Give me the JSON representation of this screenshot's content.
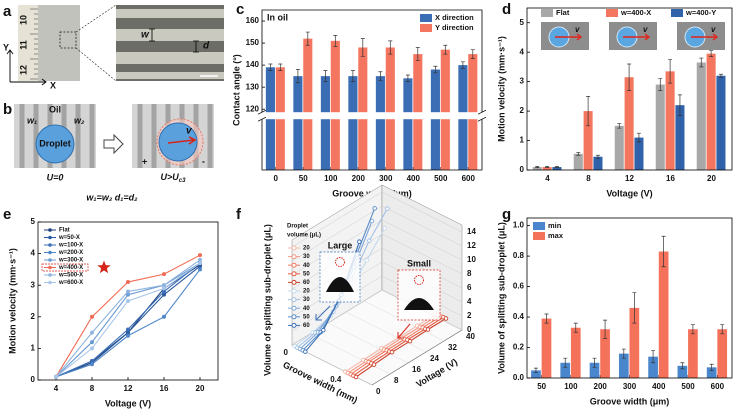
{
  "panel_a": {
    "label": "a",
    "ruler": [
      "10",
      "11",
      "12"
    ],
    "y_axis": "Y",
    "x_axis": "X",
    "w": "w",
    "d": "d"
  },
  "panel_b": {
    "label": "b",
    "medium": "Oil",
    "w1": "w₁",
    "w2": "w₂",
    "droplet": "Droplet",
    "state_left": "U=0",
    "state_right": "U>U",
    "state_right_sub": "c3",
    "plus": "+",
    "minus": "-",
    "velocity": "v",
    "condition": "w₁=w₂  d₁=d₂"
  },
  "chart_data": [
    {
      "type": "bar",
      "label": "c",
      "annotation": "In oil",
      "categories": [
        "0",
        "50",
        "100",
        "200",
        "300",
        "400",
        "500",
        "600"
      ],
      "series": [
        {
          "name": "X direction",
          "color": "#3a6db3",
          "values": [
            139,
            135,
            135,
            135,
            135,
            134,
            138,
            140
          ],
          "errors": [
            1.5,
            3,
            2.5,
            2.5,
            2,
            1.5,
            1.5,
            1.5
          ]
        },
        {
          "name": "Y direction",
          "color": "#f47560",
          "values": [
            139,
            152,
            151,
            148,
            148,
            145,
            147,
            145
          ],
          "errors": [
            1.5,
            3,
            2.5,
            4,
            3,
            3,
            2,
            2
          ]
        }
      ],
      "xlabel": "Groove width (μm)",
      "ylabel": "Contact angle (°)",
      "ylim": [
        120,
        165
      ],
      "yticks": [
        120,
        130,
        140,
        150,
        160
      ],
      "axis_break": true,
      "legend": "upper right"
    },
    {
      "type": "bar",
      "label": "d",
      "categories": [
        "4",
        "8",
        "12",
        "16",
        "20"
      ],
      "series": [
        {
          "name": "Flat",
          "color": "#a8a8a8",
          "values": [
            0.1,
            0.55,
            1.5,
            2.9,
            3.65
          ],
          "errors": [
            0.02,
            0.05,
            0.08,
            0.2,
            0.15
          ]
        },
        {
          "name": "w=400-X",
          "color": "#f4765f",
          "values": [
            0.1,
            2.0,
            3.15,
            3.35,
            3.95
          ],
          "errors": [
            0.02,
            0.5,
            0.45,
            0.4,
            0.1
          ]
        },
        {
          "name": "w=400-Y",
          "color": "#2f62a8",
          "values": [
            0.1,
            0.45,
            1.1,
            2.2,
            3.2
          ],
          "errors": [
            0.02,
            0.05,
            0.15,
            0.35,
            0.05
          ]
        }
      ],
      "inset_labels": [
        "v",
        "v",
        "v"
      ],
      "xlabel": "Voltage (V)",
      "ylabel": "Motion velocity (mm·s⁻¹)",
      "ylim": [
        0,
        5.5
      ],
      "yticks": [
        0,
        1,
        2,
        3,
        4,
        5
      ],
      "legend": "top"
    },
    {
      "type": "line",
      "label": "e",
      "x": [
        4,
        8,
        12,
        16,
        20
      ],
      "xlim": [
        2,
        22
      ],
      "xticks": [
        4,
        8,
        12,
        16,
        20
      ],
      "series": [
        {
          "name": "Flat",
          "color": "#1f3f7a",
          "values": [
            0.1,
            0.55,
            1.5,
            2.9,
            3.65
          ]
        },
        {
          "name": "w=50-X",
          "color": "#2b5aa0",
          "values": [
            0.1,
            0.6,
            1.5,
            2.7,
            3.6
          ]
        },
        {
          "name": "w=100-X",
          "color": "#3b6fb8",
          "values": [
            0.1,
            0.6,
            1.6,
            2.8,
            3.7
          ]
        },
        {
          "name": "w=200-X",
          "color": "#4f86c8",
          "values": [
            0.1,
            0.5,
            1.4,
            2.0,
            3.5
          ]
        },
        {
          "name": "w=300-X",
          "color": "#6b9bd4",
          "values": [
            0.1,
            1.2,
            2.7,
            3.0,
            3.7
          ]
        },
        {
          "name": "w=400-X",
          "color": "#f26b55",
          "values": [
            0.1,
            2.0,
            3.1,
            3.35,
            3.95
          ]
        },
        {
          "name": "w=500-X",
          "color": "#8fb3de",
          "values": [
            0.1,
            1.5,
            2.8,
            3.0,
            3.8
          ]
        },
        {
          "name": "w=600-X",
          "color": "#a9c6e8",
          "values": [
            0.1,
            1.0,
            2.5,
            2.9,
            3.7
          ]
        }
      ],
      "xlabel": "Voltage (V)",
      "ylabel": "Motion velocity (mm·s⁻¹)",
      "ylim": [
        0,
        5
      ],
      "yticks": [
        0,
        1,
        2,
        3,
        4,
        5
      ],
      "legend": "upper left"
    },
    {
      "type": "line3d",
      "label": "f",
      "x": [
        0,
        8,
        16,
        24,
        32,
        40
      ],
      "xlim": [
        0,
        40
      ],
      "xticks": [
        0,
        8,
        16,
        24,
        32,
        40
      ],
      "xlabel": "Voltage (V)",
      "glim": [
        0,
        0.6
      ],
      "gticks": [
        0,
        0.4
      ],
      "glabel": "Groove width (mm)",
      "zlim": [
        0,
        15
      ],
      "zticks": [
        0,
        2,
        4,
        6,
        8,
        10,
        12,
        14
      ],
      "zlabel": "Volume of splitting sub-droplet (μL)",
      "legend_title": [
        "Droplet",
        "volume (μL)"
      ],
      "annotations": [
        "Large",
        "Small"
      ],
      "series": [
        {
          "name": "20",
          "color": "#f7b9ab",
          "groove": 0.4,
          "values": [
            0,
            0.1,
            0.2,
            0.2,
            0.3,
            0.3
          ]
        },
        {
          "name": "30",
          "color": "#f49a86",
          "groove": 0.42,
          "values": [
            0,
            0.1,
            0.2,
            0.3,
            0.3,
            0.4
          ]
        },
        {
          "name": "40",
          "color": "#f07b63",
          "groove": 0.44,
          "values": [
            0,
            0.2,
            0.3,
            0.3,
            0.4,
            0.4
          ]
        },
        {
          "name": "50",
          "color": "#e35c44",
          "groove": 0.46,
          "values": [
            0,
            0.2,
            0.3,
            0.4,
            0.4,
            0.5
          ]
        },
        {
          "name": "60",
          "color": "#cc4029",
          "groove": 0.48,
          "values": [
            0,
            0.2,
            0.4,
            0.4,
            0.5,
            0.5
          ]
        },
        {
          "name": "20",
          "color": "#c3d8ee",
          "groove": 0.02,
          "values": [
            0,
            0.4,
            1.2,
            3,
            6,
            9
          ]
        },
        {
          "name": "30",
          "color": "#a2c1e5",
          "groove": 0.04,
          "values": [
            0,
            0.6,
            2,
            5,
            9,
            12
          ]
        },
        {
          "name": "40",
          "color": "#7fa8d8",
          "groove": 0.06,
          "values": [
            0,
            0.8,
            3,
            7,
            12,
            null
          ]
        },
        {
          "name": "50",
          "color": "#5a8dc9",
          "groove": 0.08,
          "values": [
            0,
            1,
            4,
            9,
            14,
            null
          ]
        },
        {
          "name": "60",
          "color": "#3a6fb5",
          "groove": 0.1,
          "values": [
            0,
            1.5,
            5,
            11,
            null,
            null
          ]
        }
      ]
    },
    {
      "type": "bar",
      "label": "g",
      "categories": [
        "50",
        "100",
        "200",
        "300",
        "400",
        "500",
        "600"
      ],
      "series": [
        {
          "name": "min",
          "color": "#4a86cc",
          "values": [
            0.05,
            0.1,
            0.1,
            0.16,
            0.14,
            0.08,
            0.07
          ],
          "errors": [
            0.015,
            0.03,
            0.03,
            0.03,
            0.04,
            0.02,
            0.02
          ]
        },
        {
          "name": "max",
          "color": "#f4715a",
          "values": [
            0.39,
            0.33,
            0.32,
            0.46,
            0.83,
            0.32,
            0.32
          ],
          "errors": [
            0.03,
            0.03,
            0.06,
            0.1,
            0.1,
            0.03,
            0.03
          ]
        }
      ],
      "xlabel": "Groove width (μm)",
      "ylabel": "Volume of splitting sub-droplet (μL)",
      "ylim": [
        0,
        1.05
      ],
      "yticks": [
        {
          "value": 0,
          "label": "0.0"
        },
        0.2,
        0.4,
        0.6,
        0.8,
        {
          "value": 1,
          "label": "1.0"
        }
      ],
      "legend": "upper left"
    }
  ]
}
